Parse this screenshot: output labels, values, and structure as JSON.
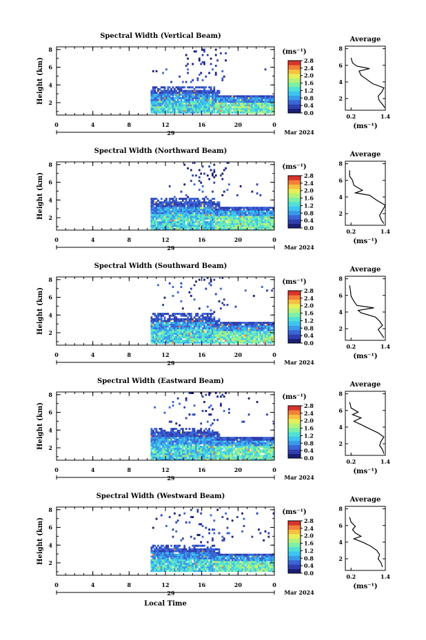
{
  "figure": {
    "xlabel": "Local Time",
    "date_label": "Mar 2024",
    "day_label": "29",
    "colorbar_unit": "(ms⁻¹)",
    "colorbar_ticks": [
      "2.8",
      "2.4",
      "2.0",
      "1.6",
      "1.2",
      "0.8",
      "0.4",
      "0.0"
    ],
    "avg_title": "Average",
    "avg_xlabel": "(ms⁻¹)",
    "ylabel": "Height (km)"
  },
  "colors": {
    "scale": [
      "#1a1f78",
      "#2f3fae",
      "#3a66d6",
      "#3a9ae8",
      "#3ec4ef",
      "#52e0d6",
      "#7ef0a6",
      "#b6f27a",
      "#e8ee5a",
      "#f6c040",
      "#f2803a",
      "#d8342c"
    ],
    "background": "#ffffff"
  },
  "chart_data": [
    {
      "type": "heatmap",
      "title": "Spectral Width (Vertical Beam)",
      "x_ticks": [
        "0",
        "4",
        "8",
        "12",
        "16",
        "20",
        "0"
      ],
      "xlim": [
        0,
        24
      ],
      "y_ticks": [
        "2",
        "4",
        "6",
        "8"
      ],
      "ylim": [
        0.6,
        8.3
      ],
      "colorbar_range": [
        0.0,
        2.8
      ],
      "data_start_hour": 10.2,
      "main_layer_km": [
        0.9,
        3.4
      ],
      "upper_echo_km": [
        4.2,
        5.8
      ],
      "avg_profile": {
        "title": "Average",
        "x_ticks": [
          "0.2",
          "1.4"
        ],
        "xlim": [
          0.0,
          1.4
        ],
        "y_ticks": [
          "2",
          "4",
          "6",
          "8"
        ],
        "ylim": [
          0.6,
          8.3
        ],
        "height": [
          0.9,
          1.3,
          1.8,
          2.3,
          2.8,
          3.3,
          3.8,
          4.3,
          4.8,
          5.3,
          5.6,
          5.9,
          6.3,
          6.9
        ],
        "width": [
          1.38,
          1.3,
          1.18,
          1.15,
          1.28,
          1.35,
          0.95,
          0.75,
          0.55,
          0.48,
          0.85,
          0.4,
          0.25,
          0.2
        ]
      }
    },
    {
      "type": "heatmap",
      "title": "Spectral Width (Northward Beam)",
      "x_ticks": [
        "0",
        "4",
        "8",
        "12",
        "16",
        "20",
        "0"
      ],
      "xlim": [
        0,
        24
      ],
      "y_ticks": [
        "2",
        "4",
        "6",
        "8"
      ],
      "ylim": [
        0.6,
        8.3
      ],
      "colorbar_range": [
        0.0,
        2.8
      ],
      "data_start_hour": 10.2,
      "main_layer_km": [
        0.7,
        3.8
      ],
      "upper_echo_km": [
        4.2,
        6.0
      ],
      "avg_profile": {
        "title": "Average",
        "x_ticks": [
          "0.2",
          "1.4"
        ],
        "xlim": [
          0.0,
          1.4
        ],
        "y_ticks": [
          "2",
          "4",
          "6",
          "8"
        ],
        "ylim": [
          0.6,
          8.3
        ],
        "height": [
          0.8,
          1.3,
          1.8,
          2.4,
          3.0,
          3.6,
          4.2,
          4.5,
          4.8,
          5.4,
          6.0,
          6.5,
          7.2
        ],
        "width": [
          1.35,
          1.25,
          1.2,
          1.3,
          1.4,
          1.1,
          0.85,
          0.35,
          0.6,
          0.3,
          0.25,
          0.15,
          0.15
        ]
      }
    },
    {
      "type": "heatmap",
      "title": "Spectral Width (Southward Beam)",
      "x_ticks": [
        "0",
        "4",
        "8",
        "12",
        "16",
        "20",
        "0"
      ],
      "xlim": [
        0,
        24
      ],
      "y_ticks": [
        "2",
        "4",
        "6",
        "8"
      ],
      "ylim": [
        0.6,
        8.3
      ],
      "colorbar_range": [
        0.0,
        2.8
      ],
      "data_start_hour": 10.2,
      "main_layer_km": [
        0.9,
        3.7
      ],
      "upper_echo_km": [
        4.2,
        7.6
      ],
      "avg_profile": {
        "title": "Average",
        "x_ticks": [
          "0.2",
          "1.4"
        ],
        "xlim": [
          0.0,
          1.4
        ],
        "y_ticks": [
          "2",
          "4",
          "6",
          "8"
        ],
        "ylim": [
          0.6,
          8.3
        ],
        "height": [
          0.9,
          1.4,
          1.9,
          2.4,
          2.9,
          3.4,
          3.9,
          4.2,
          4.5,
          4.8,
          5.3,
          5.9,
          6.5,
          7.2
        ],
        "width": [
          1.35,
          1.25,
          1.15,
          1.3,
          1.2,
          1.05,
          0.55,
          0.45,
          1.0,
          0.4,
          0.3,
          0.2,
          0.18,
          0.15
        ]
      }
    },
    {
      "type": "heatmap",
      "title": "Spectral Width (Eastward Beam)",
      "x_ticks": [
        "0",
        "4",
        "8",
        "12",
        "16",
        "20",
        "0"
      ],
      "xlim": [
        0,
        24
      ],
      "y_ticks": [
        "2",
        "4",
        "6",
        "8"
      ],
      "ylim": [
        0.6,
        8.3
      ],
      "colorbar_range": [
        0.0,
        2.8
      ],
      "data_start_hour": 10.2,
      "main_layer_km": [
        0.7,
        3.8
      ],
      "upper_echo_km": [
        4.4,
        7.6
      ],
      "avg_profile": {
        "title": "Average",
        "x_ticks": [
          "0.2",
          "1.4"
        ],
        "xlim": [
          0.0,
          1.4
        ],
        "y_ticks": [
          "2",
          "4",
          "6",
          "8"
        ],
        "ylim": [
          0.6,
          8.3
        ],
        "height": [
          0.8,
          1.3,
          1.8,
          2.3,
          2.8,
          3.3,
          3.8,
          4.3,
          4.7,
          5.1,
          5.5,
          5.8,
          6.3,
          7.0
        ],
        "width": [
          1.35,
          1.3,
          1.2,
          1.25,
          1.35,
          1.15,
          0.85,
          0.55,
          0.3,
          0.55,
          0.25,
          0.45,
          0.2,
          0.15
        ]
      }
    },
    {
      "type": "heatmap",
      "title": "Spectral Width (Westward Beam)",
      "x_ticks": [
        "0",
        "4",
        "8",
        "12",
        "16",
        "20",
        "0"
      ],
      "xlim": [
        0,
        24
      ],
      "y_ticks": [
        "2",
        "4",
        "6",
        "8"
      ],
      "ylim": [
        0.6,
        8.3
      ],
      "colorbar_range": [
        0.0,
        2.8
      ],
      "data_start_hour": 10.2,
      "main_layer_km": [
        1.0,
        3.6
      ],
      "upper_echo_km": [
        4.2,
        7.6
      ],
      "avg_profile": {
        "title": "Average",
        "x_ticks": [
          "0.2",
          "1.4"
        ],
        "xlim": [
          0.0,
          1.4
        ],
        "y_ticks": [
          "2",
          "4",
          "6",
          "8"
        ],
        "ylim": [
          0.6,
          8.3
        ],
        "height": [
          1.0,
          1.5,
          2.0,
          2.5,
          3.0,
          3.5,
          4.0,
          4.4,
          4.7,
          5.1,
          5.5,
          5.9,
          6.4,
          7.0
        ],
        "width": [
          1.3,
          1.25,
          1.15,
          1.2,
          1.1,
          0.9,
          0.6,
          0.3,
          0.55,
          0.35,
          0.25,
          0.35,
          0.2,
          0.15
        ]
      }
    }
  ]
}
